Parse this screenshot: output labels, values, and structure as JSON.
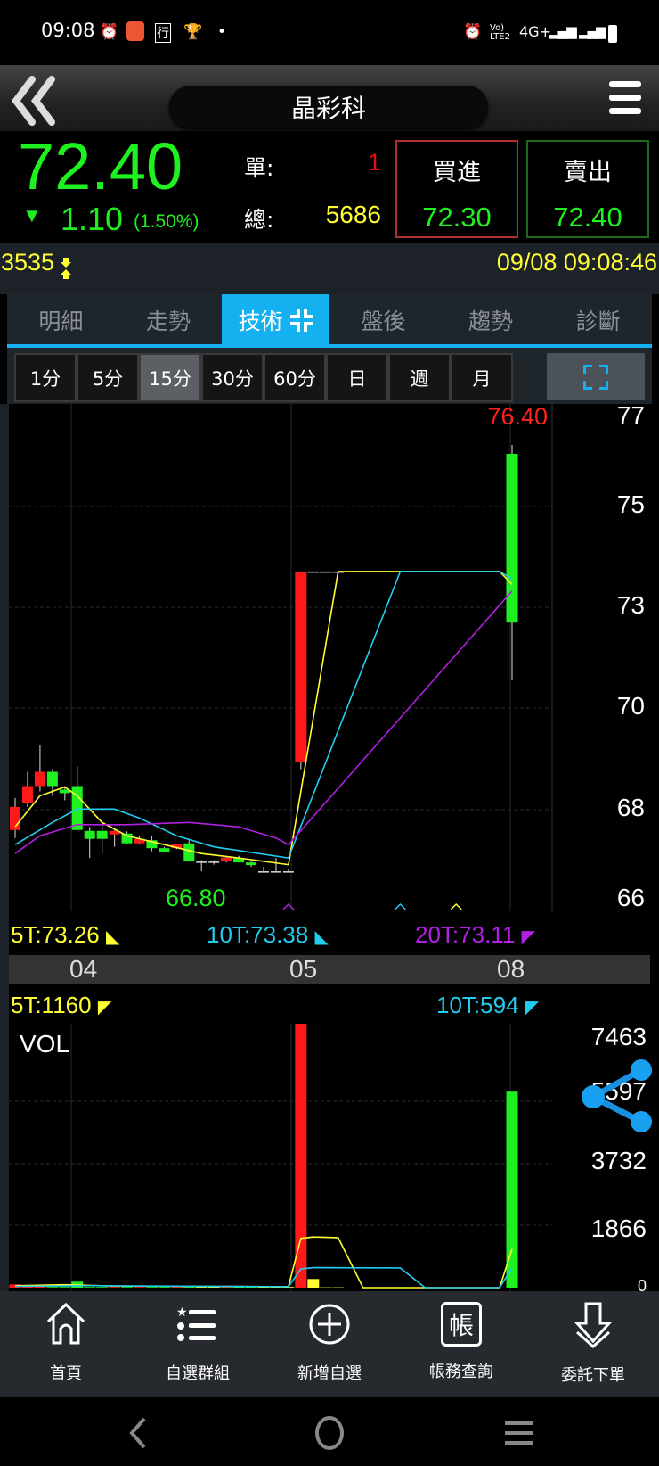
{
  "status_bar": {
    "time": "09:08",
    "network": "4G+",
    "volte": "Vo) LTE2"
  },
  "header": {
    "title": "晶彩科",
    "back_icon": "double-chevron-left-icon",
    "menu_icon": "hamburger-icon"
  },
  "quote": {
    "price": "72.40",
    "change_arrow": "▼",
    "change": "1.10",
    "change_pct": "(1.50%)",
    "single_label": "單:",
    "single_value": "1",
    "total_label": "總:",
    "total_value": "5686",
    "buy_label": "買進",
    "buy_price": "72.30",
    "sell_label": "賣出",
    "sell_price": "72.40"
  },
  "info": {
    "code": "3535",
    "datetime": "09/08 09:08:46"
  },
  "tabs": [
    {
      "label": "明細"
    },
    {
      "label": "走勢"
    },
    {
      "label": "技術",
      "active": true
    },
    {
      "label": "盤後"
    },
    {
      "label": "趨勢"
    },
    {
      "label": "診斷"
    }
  ],
  "intervals": [
    {
      "label": "1分"
    },
    {
      "label": "5分"
    },
    {
      "label": "15分",
      "active": true
    },
    {
      "label": "30分"
    },
    {
      "label": "60分"
    },
    {
      "label": "日"
    },
    {
      "label": "週"
    },
    {
      "label": "月"
    }
  ],
  "colors": {
    "up": "#ff1a1a",
    "down": "#1ff01f",
    "flat": "#ffff33",
    "ma5": "#ffff33",
    "ma10": "#22ccee",
    "ma20": "#b020e0",
    "accent": "#14b0f0"
  },
  "chart_data": [
    {
      "type": "candlestick",
      "interval": "15分",
      "y_tick_labels": [
        "77",
        "75",
        "73",
        "70",
        "68",
        "66"
      ],
      "high_label": "76.40",
      "low_label": "66.80",
      "x_tick_labels": [
        "04",
        "05",
        "08"
      ],
      "candles": [
        {
          "slot": 0,
          "o": 67.73,
          "h": 68.45,
          "l": 67.55,
          "c": 68.25
        },
        {
          "slot": 1,
          "o": 68.33,
          "h": 69.04,
          "l": 68.25,
          "c": 68.72
        },
        {
          "slot": 2,
          "o": 68.72,
          "h": 69.64,
          "l": 68.6,
          "c": 69.04
        },
        {
          "slot": 3,
          "o": 69.04,
          "h": 69.1,
          "l": 68.5,
          "c": 68.72
        },
        {
          "slot": 4,
          "o": 68.64,
          "h": 68.72,
          "l": 68.4,
          "c": 68.56
        },
        {
          "slot": 5,
          "o": 68.72,
          "h": 69.16,
          "l": 67.73,
          "c": 67.73
        },
        {
          "slot": 6,
          "o": 67.71,
          "h": 67.8,
          "l": 67.1,
          "c": 67.53
        },
        {
          "slot": 7,
          "o": 67.71,
          "h": 67.9,
          "l": 67.2,
          "c": 67.53
        },
        {
          "slot": 8,
          "o": 67.63,
          "h": 67.75,
          "l": 67.35,
          "c": 67.71
        },
        {
          "slot": 9,
          "o": 67.65,
          "h": 67.7,
          "l": 67.4,
          "c": 67.43
        },
        {
          "slot": 10,
          "o": 67.43,
          "h": 67.6,
          "l": 67.4,
          "c": 67.53
        },
        {
          "slot": 11,
          "o": 67.5,
          "h": 67.6,
          "l": 67.25,
          "c": 67.32
        },
        {
          "slot": 12,
          "o": 67.32,
          "h": 67.35,
          "l": 67.24,
          "c": 67.24
        },
        {
          "slot": 13,
          "o": 67.32,
          "h": 67.41,
          "l": 67.3,
          "c": 67.41
        },
        {
          "slot": 14,
          "o": 67.43,
          "h": 67.5,
          "l": 67.02,
          "c": 67.02
        },
        {
          "slot": 15,
          "o": 67.02,
          "h": 67.05,
          "l": 66.8,
          "c": 67.02
        },
        {
          "slot": 16,
          "o": 67.02,
          "h": 67.05,
          "l": 66.95,
          "c": 67.02
        },
        {
          "slot": 17,
          "o": 67.02,
          "h": 67.15,
          "l": 67.0,
          "c": 67.11
        },
        {
          "slot": 18,
          "o": 67.1,
          "h": 67.15,
          "l": 67.0,
          "c": 67.0
        },
        {
          "slot": 19,
          "o": 67.0,
          "h": 67.02,
          "l": 66.9,
          "c": 66.94
        },
        {
          "slot": 20,
          "o": 66.8,
          "h": 66.9,
          "l": 66.8,
          "c": 66.8
        },
        {
          "slot": 21,
          "o": 66.8,
          "h": 67.1,
          "l": 66.8,
          "c": 66.8
        },
        {
          "slot": 22,
          "o": 66.8,
          "h": 66.85,
          "l": 66.8,
          "c": 66.8
        },
        {
          "slot": 23,
          "o": 69.25,
          "h": 73.55,
          "l": 69.1,
          "c": 73.55
        },
        {
          "slot": 24,
          "o": 73.55,
          "h": 73.55,
          "l": 73.55,
          "c": 73.55
        },
        {
          "slot": 25,
          "o": 73.55,
          "h": 73.55,
          "l": 73.55,
          "c": 73.55
        },
        {
          "slot": 26,
          "o": 73.55,
          "h": 73.55,
          "l": 73.55,
          "c": 73.55
        },
        {
          "slot": 40,
          "o": 76.2,
          "h": 76.4,
          "l": 71.1,
          "c": 72.4
        }
      ],
      "series": [
        {
          "name": "5T",
          "label": "5T:73.26",
          "points": [
            [
              0,
              67.8
            ],
            [
              2,
              68.5
            ],
            [
              4,
              68.7
            ],
            [
              5,
              68.5
            ],
            [
              7,
              67.9
            ],
            [
              9,
              67.6
            ],
            [
              12,
              67.4
            ],
            [
              15,
              67.2
            ],
            [
              18,
              67.1
            ],
            [
              22,
              66.95
            ],
            [
              26,
              73.55
            ],
            [
              39,
              73.55
            ],
            [
              40,
              73.26
            ]
          ]
        },
        {
          "name": "10T",
          "label": "10T:73.38",
          "points": [
            [
              0,
              67.4
            ],
            [
              3,
              67.9
            ],
            [
              5,
              68.2
            ],
            [
              8,
              68.2
            ],
            [
              10,
              68.0
            ],
            [
              13,
              67.6
            ],
            [
              16,
              67.35
            ],
            [
              22,
              67.1
            ],
            [
              31,
              73.55
            ],
            [
              39,
              73.55
            ],
            [
              40,
              73.38
            ]
          ]
        },
        {
          "name": "20T",
          "label": "20T:73.11",
          "points": [
            [
              0,
              67.2
            ],
            [
              2,
              67.6
            ],
            [
              5,
              67.85
            ],
            [
              9,
              67.85
            ],
            [
              14,
              67.9
            ],
            [
              18,
              67.8
            ],
            [
              21,
              67.55
            ],
            [
              22,
              67.4
            ],
            [
              40,
              73.11
            ]
          ]
        }
      ]
    },
    {
      "type": "bar",
      "title": "VOL",
      "ylim": [
        0,
        7463
      ],
      "y_tick_labels": [
        "7463",
        "5597",
        "3732",
        "1866",
        "0"
      ],
      "volumes": [
        [
          0,
          100
        ],
        [
          1,
          30
        ],
        [
          2,
          80
        ],
        [
          3,
          20
        ],
        [
          4,
          20
        ],
        [
          5,
          180
        ],
        [
          6,
          20
        ],
        [
          7,
          20
        ],
        [
          8,
          20
        ],
        [
          9,
          20
        ],
        [
          10,
          20
        ],
        [
          11,
          20
        ],
        [
          12,
          20
        ],
        [
          13,
          20
        ],
        [
          14,
          20
        ],
        [
          15,
          20
        ],
        [
          16,
          20
        ],
        [
          17,
          20
        ],
        [
          18,
          20
        ],
        [
          19,
          20
        ],
        [
          20,
          20
        ],
        [
          21,
          20
        ],
        [
          22,
          20
        ],
        [
          23,
          8000
        ],
        [
          24,
          260
        ],
        [
          25,
          10
        ],
        [
          26,
          10
        ],
        [
          40,
          5880
        ]
      ],
      "series": [
        {
          "name": "5T",
          "label": "5T:1160",
          "points": [
            [
              0,
              60
            ],
            [
              4,
              90
            ],
            [
              8,
              50
            ],
            [
              22,
              30
            ],
            [
              23,
              1480
            ],
            [
              24,
              1520
            ],
            [
              26,
              1500
            ],
            [
              28,
              0
            ],
            [
              39,
              0
            ],
            [
              40,
              1160
            ]
          ]
        },
        {
          "name": "10T",
          "label": "10T:594",
          "points": [
            [
              0,
              40
            ],
            [
              6,
              60
            ],
            [
              22,
              30
            ],
            [
              23,
              560
            ],
            [
              24,
              600
            ],
            [
              31,
              590
            ],
            [
              33,
              0
            ],
            [
              39,
              0
            ],
            [
              40,
              594
            ]
          ]
        }
      ]
    }
  ],
  "nav": [
    {
      "label": "首頁",
      "icon": "home-icon"
    },
    {
      "label": "自選群組",
      "icon": "list-star-icon"
    },
    {
      "label": "新增自選",
      "icon": "plus-circle-icon"
    },
    {
      "label": "帳務查詢",
      "icon": "account-icon",
      "glyph": "帳"
    },
    {
      "label": "委託下單",
      "icon": "down-arrow-icon"
    }
  ]
}
